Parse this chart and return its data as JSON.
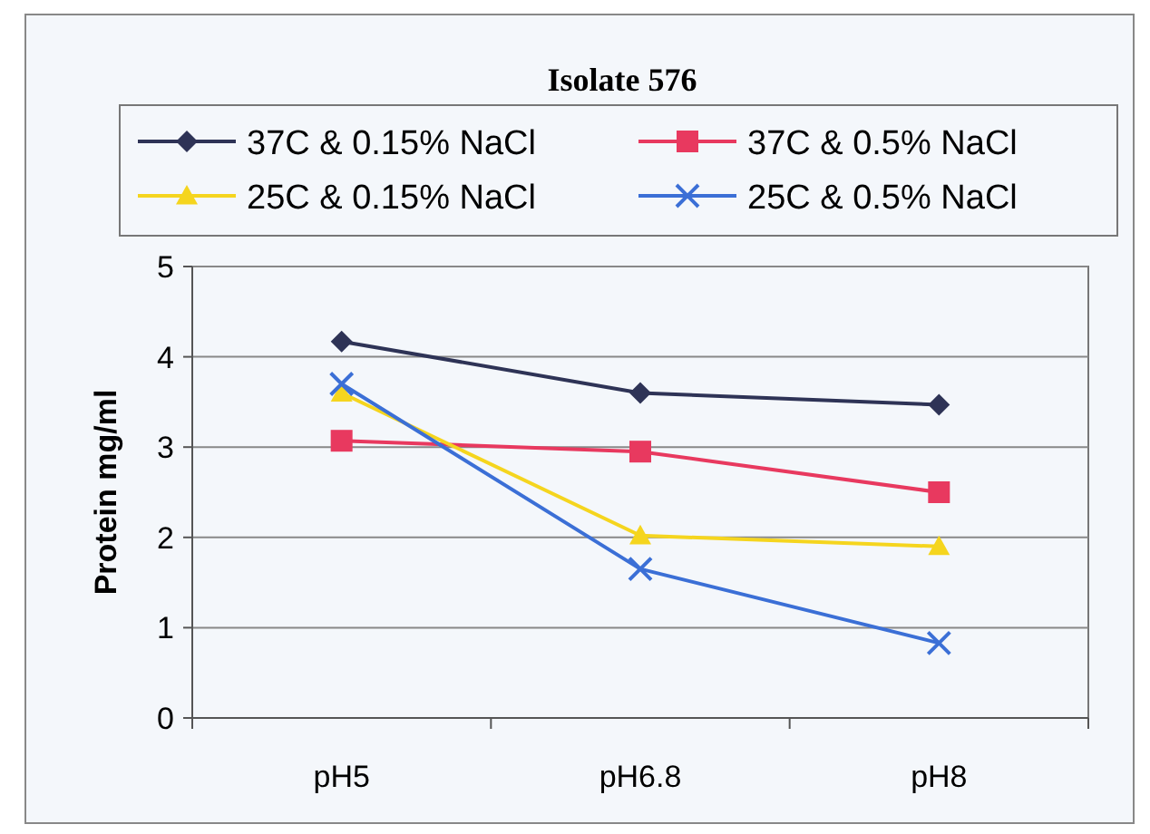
{
  "chart_data": {
    "type": "line",
    "title": "Isolate 576",
    "ylabel": "Protein mg/ml",
    "categories": [
      "pH5",
      "pH6.8",
      "pH8"
    ],
    "ylim": [
      0,
      5
    ],
    "yticks": [
      0,
      1,
      2,
      3,
      4,
      5
    ],
    "grid": "y",
    "legend": "top",
    "series": [
      {
        "name": "37C & 0.15% NaCl",
        "color": "#2e3356",
        "marker": "diamond",
        "values": [
          4.17,
          3.6,
          3.47
        ]
      },
      {
        "name": "37C & 0.5% NaCl",
        "color": "#e8395f",
        "marker": "square",
        "values": [
          3.07,
          2.95,
          2.5
        ]
      },
      {
        "name": "25C & 0.15% NaCl",
        "color": "#f5d51e",
        "marker": "triangle",
        "values": [
          3.6,
          2.02,
          1.9
        ]
      },
      {
        "name": "25C & 0.5% NaCl",
        "color": "#3b6fd6",
        "marker": "cross",
        "values": [
          3.7,
          1.65,
          0.83
        ]
      }
    ]
  }
}
